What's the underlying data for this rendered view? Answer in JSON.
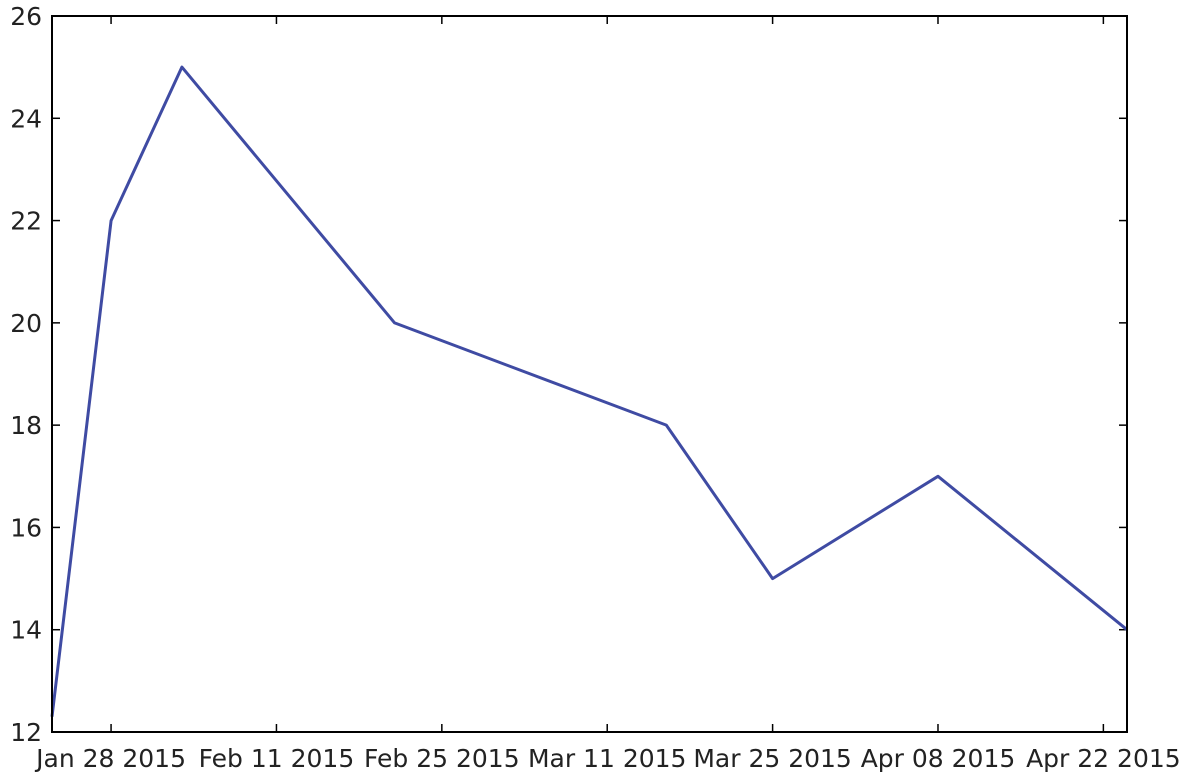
{
  "chart_data": {
    "type": "line",
    "title": "",
    "xlabel": "",
    "ylabel": "",
    "x_tick_labels": [
      "Jan 28 2015",
      "Feb 11 2015",
      "Feb 25 2015",
      "Mar 11 2015",
      "Mar 25 2015",
      "Apr 08 2015",
      "Apr 22 2015"
    ],
    "x_tick_dates": [
      "2015-01-28",
      "2015-02-11",
      "2015-02-25",
      "2015-03-11",
      "2015-03-25",
      "2015-04-08",
      "2015-04-22"
    ],
    "xlim": [
      "2015-01-23",
      "2015-04-24"
    ],
    "ylim": [
      12,
      26
    ],
    "y_ticks": [
      12,
      14,
      16,
      18,
      20,
      22,
      24,
      26
    ],
    "grid": false,
    "series": [
      {
        "color": "#3f4ba3",
        "points": [
          {
            "x": "2015-01-23",
            "y": 12.3
          },
          {
            "x": "2015-01-28",
            "y": 22
          },
          {
            "x": "2015-02-03",
            "y": 25
          },
          {
            "x": "2015-02-21",
            "y": 20
          },
          {
            "x": "2015-03-16",
            "y": 18
          },
          {
            "x": "2015-03-25",
            "y": 15
          },
          {
            "x": "2015-04-08",
            "y": 17
          },
          {
            "x": "2015-04-24",
            "y": 14
          }
        ]
      }
    ]
  }
}
